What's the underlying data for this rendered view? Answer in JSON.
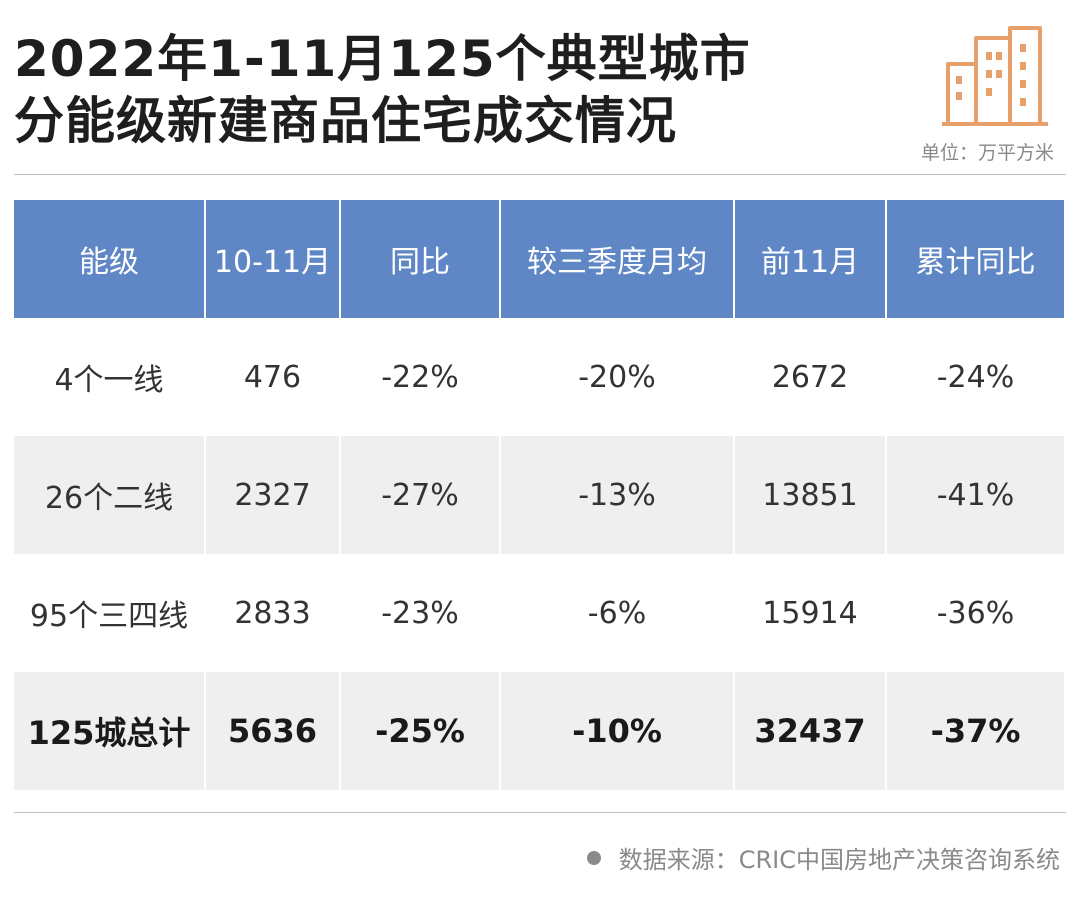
{
  "title": {
    "line1": "2022年1-11月125个典型城市",
    "line2": "分能级新建商品住宅成交情况"
  },
  "unit": "单位：万平方米",
  "icon": "building-icon",
  "colors": {
    "header_bg": "#5f87c6",
    "accent_orange": "#e8a06a"
  },
  "chart_data": {
    "type": "table",
    "columns": [
      "能级",
      "10-11月",
      "同比",
      "较三季度月均",
      "前11月",
      "累计同比"
    ],
    "rows": [
      [
        "4个一线",
        "476",
        "-22%",
        "-20%",
        "2672",
        "-24%"
      ],
      [
        "26个二线",
        "2327",
        "-27%",
        "-13%",
        "13851",
        "-41%"
      ],
      [
        "95个三四线",
        "2833",
        "-23%",
        "-6%",
        "15914",
        "-36%"
      ],
      [
        "125城总计",
        "5636",
        "-25%",
        "-10%",
        "32437",
        "-37%"
      ]
    ]
  },
  "source": "数据来源：CRIC中国房地产决策咨询系统"
}
